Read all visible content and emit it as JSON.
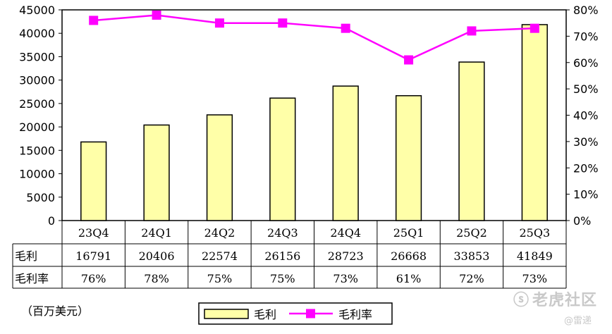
{
  "chart_data": {
    "type": "bar+line",
    "categories": [
      "23Q4",
      "24Q1",
      "24Q2",
      "24Q3",
      "24Q4",
      "25Q1",
      "25Q2",
      "25Q3"
    ],
    "series": [
      {
        "name": "毛利",
        "type": "bar",
        "axis": "left",
        "color": "#FFFFA8",
        "values": [
          16791,
          20406,
          22574,
          26156,
          28723,
          26668,
          33853,
          41849
        ]
      },
      {
        "name": "毛利率",
        "type": "line",
        "axis": "right",
        "color": "#FF00FF",
        "values": [
          76,
          78,
          75,
          75,
          73,
          61,
          72,
          73
        ]
      }
    ],
    "left_axis": {
      "ylim": [
        0,
        45000
      ],
      "ticks": [
        "0",
        "5000",
        "10000",
        "15000",
        "20000",
        "25000",
        "30000",
        "35000",
        "40000",
        "45000"
      ]
    },
    "right_axis": {
      "ylim": [
        0,
        80
      ],
      "ticks": [
        "0%",
        "10%",
        "20%",
        "30%",
        "40%",
        "50%",
        "60%",
        "70%",
        "80%"
      ]
    },
    "data_table": {
      "row_labels": [
        "毛利",
        "毛利率"
      ],
      "rows": [
        [
          "16791",
          "20406",
          "22574",
          "26156",
          "28723",
          "26668",
          "33853",
          "41849"
        ],
        [
          "76%",
          "78%",
          "75%",
          "75%",
          "73%",
          "61%",
          "72%",
          "73%"
        ]
      ]
    },
    "legend_position": "bottom",
    "grid": false
  },
  "unit_label": "（百万美元）",
  "watermark": {
    "brand": "老虎社区",
    "author": "@雷递"
  }
}
